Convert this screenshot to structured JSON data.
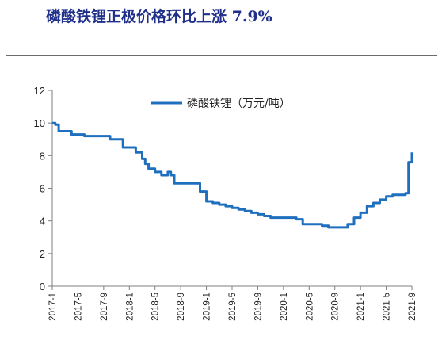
{
  "header": {
    "title": "磷酸铁锂正极价格环比上涨 7.9%"
  },
  "chart_data": {
    "type": "line",
    "title": "磷酸铁锂正极价格环比上涨 7.9%",
    "xlabel": "",
    "ylabel": "",
    "ylim": [
      0,
      12
    ],
    "yticks": [
      "0",
      "2",
      "4",
      "6",
      "8",
      "10",
      "12"
    ],
    "xlim": [
      "2017-01",
      "2021-09"
    ],
    "xticks": [
      "2017-1",
      "2017-5",
      "2017-9",
      "2018-1",
      "2018-5",
      "2018-9",
      "2019-1",
      "2019-5",
      "2019-9",
      "2020-1",
      "2020-5",
      "2020-9",
      "2021-1",
      "2021-5",
      "2021-9"
    ],
    "grid": false,
    "legend_position": "top-center",
    "line_color": "#1f6fbf",
    "series": [
      {
        "name": "磷酸铁锂（万元/吨）",
        "x": [
          "2017-01",
          "2017-01-15",
          "2017-02",
          "2017-03",
          "2017-04",
          "2017-05",
          "2017-06",
          "2017-07",
          "2017-08",
          "2017-09",
          "2017-10",
          "2017-11",
          "2017-12",
          "2018-01",
          "2018-02",
          "2018-03",
          "2018-03-15",
          "2018-04",
          "2018-05",
          "2018-06",
          "2018-07",
          "2018-07-15",
          "2018-08",
          "2018-09",
          "2018-10",
          "2018-11",
          "2018-12",
          "2019-01",
          "2019-02",
          "2019-03",
          "2019-04",
          "2019-05",
          "2019-06",
          "2019-07",
          "2019-08",
          "2019-09",
          "2019-10",
          "2019-11",
          "2019-12",
          "2020-01",
          "2020-02",
          "2020-03",
          "2020-04",
          "2020-05",
          "2020-06",
          "2020-07",
          "2020-08",
          "2020-09",
          "2020-10",
          "2020-11",
          "2020-12",
          "2021-01",
          "2021-02",
          "2021-03",
          "2021-04",
          "2021-05",
          "2021-06",
          "2021-07",
          "2021-08",
          "2021-08-15",
          "2021-09"
        ],
        "y": [
          10,
          9.9,
          9.5,
          9.5,
          9.3,
          9.3,
          9.2,
          9.2,
          9.2,
          9.2,
          9.0,
          9.0,
          8.5,
          8.5,
          8.2,
          7.8,
          7.5,
          7.2,
          7.0,
          6.8,
          7.0,
          6.8,
          6.3,
          6.3,
          6.3,
          6.3,
          5.8,
          5.2,
          5.1,
          5.0,
          4.9,
          4.8,
          4.7,
          4.6,
          4.5,
          4.4,
          4.3,
          4.2,
          4.2,
          4.2,
          4.2,
          4.1,
          3.8,
          3.8,
          3.8,
          3.7,
          3.6,
          3.6,
          3.6,
          3.8,
          4.2,
          4.5,
          4.9,
          5.1,
          5.3,
          5.5,
          5.6,
          5.6,
          5.7,
          7.6,
          8.2
        ]
      }
    ]
  }
}
